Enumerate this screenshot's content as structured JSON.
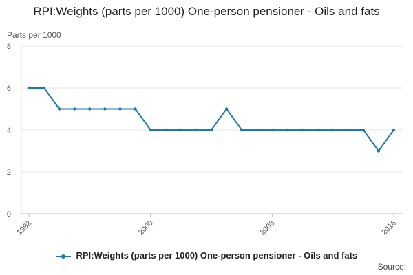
{
  "chart_data": {
    "type": "line",
    "title": "RPI:Weights (parts per 1000) One-person pensioner - Oils and fats",
    "ylabel": "Parts per 1000",
    "xlabel": "",
    "ylim": [
      0,
      8
    ],
    "xlim": [
      1992,
      2016
    ],
    "y_ticks": [
      0,
      2,
      4,
      6,
      8
    ],
    "x_ticks": [
      1992,
      2000,
      2008,
      2016
    ],
    "grid": true,
    "legend_position": "bottom",
    "source_label": "Source:",
    "series": [
      {
        "name": "RPI:Weights (parts per 1000) One-person pensioner - Oils and fats",
        "color": "#1f78b4",
        "x": [
          1992,
          1993,
          1994,
          1995,
          1996,
          1997,
          1998,
          1999,
          2000,
          2001,
          2002,
          2003,
          2004,
          2005,
          2006,
          2007,
          2008,
          2009,
          2010,
          2011,
          2012,
          2013,
          2014,
          2015,
          2016
        ],
        "values": [
          6,
          6,
          5,
          5,
          5,
          5,
          5,
          5,
          4,
          4,
          4,
          4,
          4,
          5,
          4,
          4,
          4,
          4,
          4,
          4,
          4,
          4,
          4,
          3,
          4
        ]
      }
    ]
  }
}
